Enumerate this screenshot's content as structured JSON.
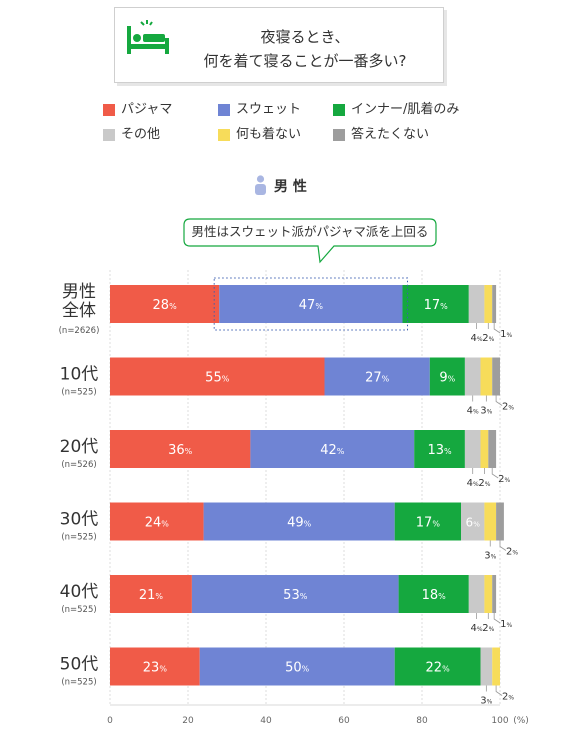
{
  "question": {
    "line1": "夜寝るとき、",
    "line2": "何を着て寝ることが一番多い?",
    "icon": "sleeping-in-bed-icon"
  },
  "legend": [
    {
      "label": "パジャマ",
      "color": "#f05b48"
    },
    {
      "label": "スウェット",
      "color": "#6f84d4"
    },
    {
      "label": "インナー/肌着のみ",
      "color": "#15a83f"
    },
    {
      "label": "その他",
      "color": "#c9c9c9"
    },
    {
      "label": "何も着ない",
      "color": "#f7dc5a"
    },
    {
      "label": "答えたくない",
      "color": "#9d9d9d"
    }
  ],
  "section": {
    "label": "男 性",
    "icon": "male-person-icon"
  },
  "callout": {
    "text": "男性はスウェット派がパジャマ派を上回る"
  },
  "chart_data": {
    "type": "bar",
    "orientation": "horizontal",
    "stacked": true,
    "value_suffix": "%",
    "categories": [
      {
        "name": "男性\n全体",
        "n": "(n=2626)"
      },
      {
        "name": "10代",
        "n": "(n=525)"
      },
      {
        "name": "20代",
        "n": "(n=526)"
      },
      {
        "name": "30代",
        "n": "(n=525)"
      },
      {
        "name": "40代",
        "n": "(n=525)"
      },
      {
        "name": "50代",
        "n": "(n=525)"
      }
    ],
    "series": [
      {
        "name": "パジャマ",
        "values": [
          28,
          55,
          36,
          24,
          21,
          23
        ]
      },
      {
        "name": "スウェット",
        "values": [
          47,
          27,
          42,
          49,
          53,
          50
        ]
      },
      {
        "name": "インナー/肌着のみ",
        "values": [
          17,
          9,
          13,
          17,
          18,
          22
        ]
      },
      {
        "name": "その他",
        "values": [
          4,
          4,
          4,
          6,
          4,
          3
        ]
      },
      {
        "name": "何も着ない",
        "values": [
          2,
          3,
          2,
          3,
          2,
          2
        ]
      },
      {
        "name": "答えたくない",
        "values": [
          1,
          2,
          2,
          2,
          1,
          0
        ]
      }
    ],
    "inside_label_series": [
      0,
      1,
      2
    ],
    "extra_inside_labels": [
      {
        "row": 3,
        "series": 3
      }
    ],
    "outside_labels": [
      [
        {
          "series": 3
        },
        {
          "series": 4
        },
        {
          "series": 5,
          "right": true
        }
      ],
      [
        {
          "series": 3
        },
        {
          "series": 4
        },
        {
          "series": 5,
          "right": true
        }
      ],
      [
        {
          "series": 3
        },
        {
          "series": 4
        },
        {
          "series": 5,
          "right": true
        }
      ],
      [
        {
          "series": 4
        },
        {
          "series": 5,
          "right": true
        }
      ],
      [
        {
          "series": 3
        },
        {
          "series": 4
        },
        {
          "series": 5,
          "right": true
        }
      ],
      [
        {
          "series": 3
        },
        {
          "series": 4,
          "right": true
        }
      ]
    ],
    "xlim": [
      0,
      100
    ],
    "xticks": [
      0,
      20,
      40,
      60,
      80,
      100
    ],
    "xunit": "(%)",
    "grid": true,
    "highlight_row": 0
  }
}
